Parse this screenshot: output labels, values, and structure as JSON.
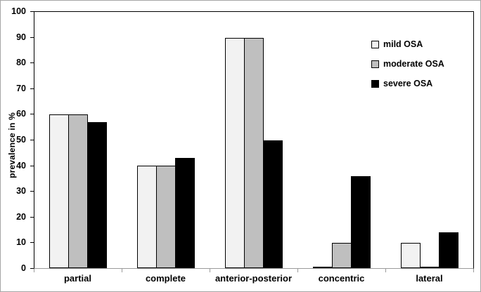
{
  "window": {
    "background": "#ffffff",
    "outer_border_color": "#a6a6a6"
  },
  "chart_data": {
    "type": "bar",
    "title": "",
    "xlabel": "",
    "ylabel": "prevalence in %",
    "ylim": [
      0,
      100
    ],
    "yticks": [
      0,
      10,
      20,
      30,
      40,
      50,
      60,
      70,
      80,
      90,
      100
    ],
    "grid": false,
    "categories": [
      "partial",
      "complete",
      "anterior-posterior",
      "concentric",
      "lateral"
    ],
    "series": [
      {
        "name": "mild OSA",
        "fill": "#f2f2f2",
        "border": "#000000",
        "values": [
          60,
          40,
          90,
          0,
          10
        ]
      },
      {
        "name": "moderate OSA",
        "fill": "#bfbfbf",
        "border": "#000000",
        "values": [
          60,
          40,
          90,
          10,
          0
        ]
      },
      {
        "name": "severe OSA",
        "fill": "#000000",
        "border": "#000000",
        "values": [
          57,
          43,
          50,
          36,
          14
        ]
      }
    ],
    "legend_position": "top-right-inside",
    "axis_colors": {
      "y_axis": "#000000",
      "x_axis": "#9a9a9a",
      "plot_border": "#000000"
    }
  }
}
